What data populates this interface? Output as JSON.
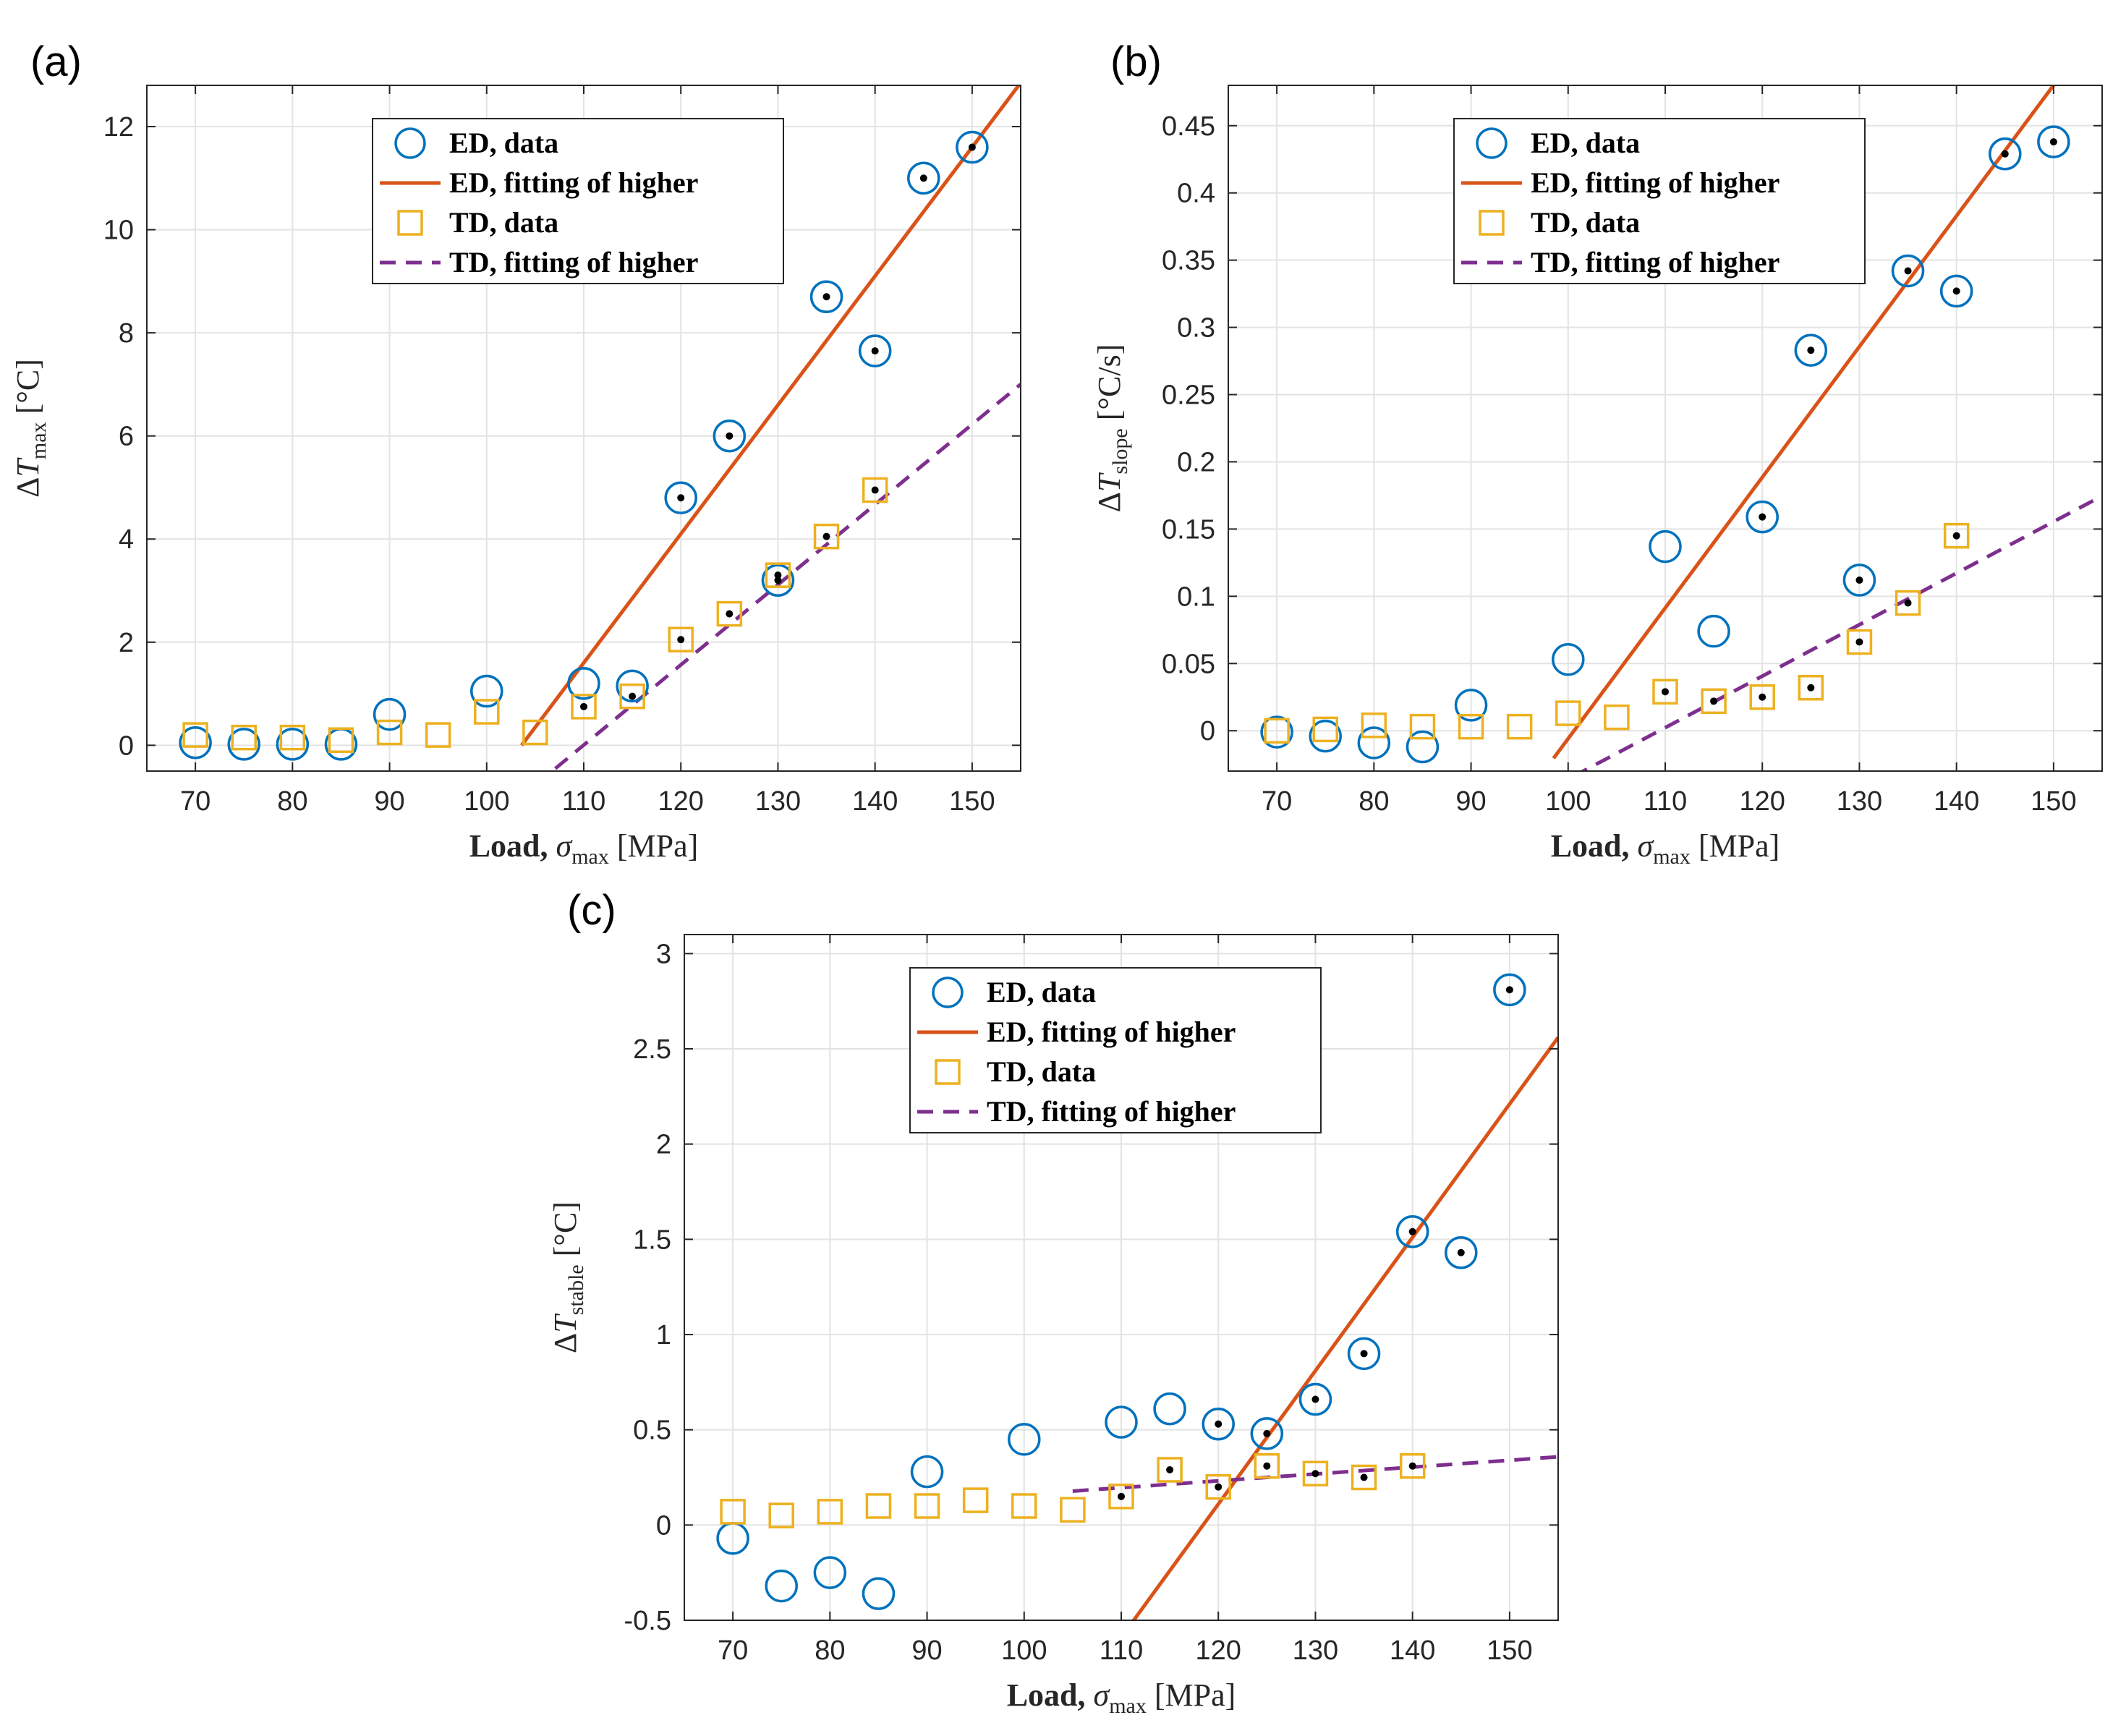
{
  "colors": {
    "ed_marker": "#0072BD",
    "ed_line": "#D95319",
    "td_marker": "#EDB120",
    "td_line": "#7E2F8E",
    "highlight_dot": "#000000"
  },
  "legend": {
    "ed_data": "ED, data",
    "ed_fit": "ED, fitting of higher",
    "td_data": "TD, data",
    "td_fit": "TD, fitting of higher"
  },
  "chart_data": [
    {
      "panel": "(a)",
      "type": "scatter",
      "xlabel": "Load, σmax [MPa]",
      "ylabel": "ΔTmax [°C]",
      "ylabel_main": "ΔT",
      "ylabel_sub": "max",
      "ylabel_unit": " [°C]",
      "xlim": [
        65,
        155
      ],
      "ylim": [
        -0.5,
        12.8
      ],
      "xticks": [
        70,
        80,
        90,
        100,
        110,
        120,
        130,
        140,
        150
      ],
      "yticks": [
        0,
        2,
        4,
        6,
        8,
        10,
        12
      ],
      "ytick_labels": [
        "0",
        "2",
        "4",
        "6",
        "8",
        "10",
        "12"
      ],
      "series": [
        {
          "name": "ED, data",
          "marker": "circle",
          "x": [
            70,
            75,
            80,
            85,
            90,
            100,
            110,
            115,
            120,
            125,
            130,
            135,
            140,
            145,
            150
          ],
          "y": [
            0.05,
            0.02,
            0.02,
            0.02,
            0.6,
            1.05,
            1.2,
            1.15,
            4.8,
            6.0,
            3.2,
            8.7,
            7.65,
            11.0,
            11.6
          ],
          "highlighted": [
            false,
            false,
            false,
            false,
            false,
            false,
            false,
            false,
            true,
            true,
            true,
            true,
            true,
            true,
            true
          ]
        },
        {
          "name": "TD, data",
          "marker": "square",
          "x": [
            70,
            75,
            80,
            85,
            90,
            95,
            100,
            105,
            110,
            115,
            120,
            125,
            130,
            135,
            140
          ],
          "y": [
            0.2,
            0.15,
            0.15,
            0.1,
            0.25,
            0.2,
            0.65,
            0.25,
            0.75,
            0.95,
            2.05,
            2.55,
            3.3,
            4.05,
            4.95
          ],
          "highlighted": [
            false,
            false,
            false,
            false,
            false,
            false,
            false,
            false,
            true,
            true,
            true,
            true,
            true,
            true,
            true
          ]
        },
        {
          "name": "ED, fitting of higher",
          "line": "solid",
          "slope": 0.25,
          "intercept": -25.9,
          "x_range": [
            103.6,
            155
          ]
        },
        {
          "name": "TD, fitting of higher",
          "line": "dashed",
          "slope": 0.1555,
          "intercept": -17.1,
          "x_range": [
            105,
            155
          ]
        }
      ]
    },
    {
      "panel": "(b)",
      "type": "scatter",
      "xlabel": "Load, σmax [MPa]",
      "ylabel": "ΔTslope [°C/s]",
      "ylabel_main": "ΔT",
      "ylabel_sub": "slope",
      "ylabel_unit": " [°C/s]",
      "xlim": [
        65,
        155
      ],
      "ylim": [
        -0.03,
        0.48
      ],
      "xticks": [
        70,
        80,
        90,
        100,
        110,
        120,
        130,
        140,
        150
      ],
      "yticks": [
        0,
        0.05,
        0.1,
        0.15,
        0.2,
        0.25,
        0.3,
        0.35,
        0.4,
        0.45
      ],
      "ytick_labels": [
        "0",
        "0.05",
        "0.1",
        "0.15",
        "0.2",
        "0.25",
        "0.3",
        "0.35",
        "0.4",
        "0.45"
      ],
      "series": [
        {
          "name": "ED, data",
          "marker": "circle",
          "x": [
            70,
            75,
            80,
            85,
            90,
            100,
            110,
            115,
            120,
            125,
            130,
            135,
            140,
            145,
            150
          ],
          "y": [
            -0.001,
            -0.004,
            -0.009,
            -0.012,
            0.019,
            0.053,
            0.137,
            0.074,
            0.159,
            0.283,
            0.112,
            0.342,
            0.327,
            0.429,
            0.438
          ],
          "highlighted": [
            false,
            false,
            false,
            false,
            false,
            false,
            false,
            false,
            true,
            true,
            true,
            true,
            true,
            true,
            true
          ]
        },
        {
          "name": "TD, data",
          "marker": "square",
          "x": [
            70,
            75,
            80,
            85,
            90,
            95,
            100,
            105,
            110,
            115,
            120,
            125,
            130,
            135,
            140
          ],
          "y": [
            0.0,
            0.001,
            0.004,
            0.003,
            0.003,
            0.003,
            0.013,
            0.01,
            0.029,
            0.022,
            0.025,
            0.032,
            0.066,
            0.095,
            0.145
          ],
          "highlighted": [
            false,
            false,
            false,
            false,
            false,
            false,
            false,
            false,
            true,
            true,
            true,
            true,
            true,
            true,
            true
          ]
        },
        {
          "name": "ED, fitting of higher",
          "line": "solid",
          "slope": 0.00972,
          "intercept": -0.9779,
          "x_range": [
            98.5,
            155
          ]
        },
        {
          "name": "TD, fitting of higher",
          "line": "dashed",
          "slope": 0.00383,
          "intercept": -0.419,
          "x_range": [
            100.5,
            155
          ]
        }
      ]
    },
    {
      "panel": "(c)",
      "type": "scatter",
      "xlabel": "Load, σmax [MPa]",
      "ylabel": "ΔTstable [°C]",
      "ylabel_main": "ΔT",
      "ylabel_sub": "stable",
      "ylabel_unit": " [°C]",
      "xlim": [
        65,
        155
      ],
      "ylim": [
        -0.5,
        3.1
      ],
      "xticks": [
        70,
        80,
        90,
        100,
        110,
        120,
        130,
        140,
        150
      ],
      "yticks": [
        -0.5,
        0,
        0.5,
        1,
        1.5,
        2,
        2.5,
        3
      ],
      "ytick_labels": [
        "-0.5",
        "0",
        "0.5",
        "1",
        "1.5",
        "2",
        "2.5",
        "3"
      ],
      "series": [
        {
          "name": "ED, data",
          "marker": "circle",
          "x": [
            70,
            75,
            80,
            85,
            90,
            100,
            110,
            115,
            120,
            125,
            130,
            135,
            140,
            145,
            150
          ],
          "y": [
            -0.07,
            -0.32,
            -0.25,
            -0.36,
            0.28,
            0.45,
            0.54,
            0.61,
            0.53,
            0.48,
            0.66,
            0.9,
            1.54,
            1.43,
            2.81
          ],
          "highlighted": [
            false,
            false,
            false,
            false,
            false,
            false,
            false,
            false,
            true,
            true,
            true,
            true,
            true,
            true,
            true
          ]
        },
        {
          "name": "TD, data",
          "marker": "square",
          "x": [
            70,
            75,
            80,
            85,
            90,
            95,
            100,
            105,
            110,
            115,
            120,
            125,
            130,
            135,
            140
          ],
          "y": [
            0.07,
            0.05,
            0.07,
            0.1,
            0.1,
            0.13,
            0.1,
            0.08,
            0.15,
            0.29,
            0.2,
            0.31,
            0.27,
            0.25,
            0.31
          ],
          "highlighted": [
            false,
            false,
            false,
            false,
            false,
            false,
            false,
            false,
            true,
            true,
            true,
            true,
            true,
            true,
            true
          ]
        },
        {
          "name": "ED, fitting of higher",
          "line": "solid",
          "slope": 0.07,
          "intercept": -8.29,
          "x_range": [
            110,
            155
          ]
        },
        {
          "name": "TD, fitting of higher",
          "line": "dashed",
          "slope": 0.0036,
          "intercept": -0.2,
          "x_range": [
            105,
            155
          ]
        }
      ]
    }
  ]
}
